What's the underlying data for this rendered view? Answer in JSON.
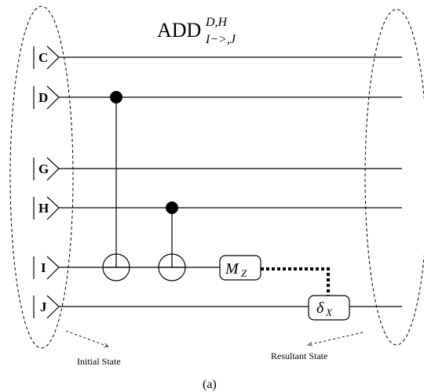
{
  "title": {
    "main": "ADD",
    "superscript": "D,H",
    "subscript": "I−>,J"
  },
  "qubits": [
    "C",
    "D",
    "G",
    "H",
    "I",
    "J"
  ],
  "gates": {
    "measure_label": "M",
    "measure_sub": "Z",
    "correction_label": "δ",
    "correction_sub": "X"
  },
  "annotations": {
    "initial_state": "Initial State",
    "resultant_state": "Resultant State"
  },
  "caption": "(a)"
}
